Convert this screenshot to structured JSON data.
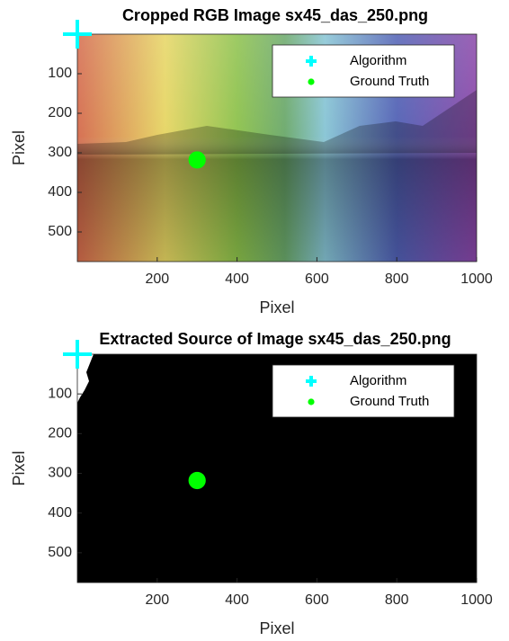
{
  "chart_data": [
    {
      "type": "scatter",
      "title": "Cropped RGB Image sx45_das_250.png",
      "x_label": "Pixel",
      "y_label": "Pixel",
      "xlim": [
        0,
        1000
      ],
      "xticks": [
        200,
        400,
        600,
        800,
        1000
      ],
      "ylim": [
        0,
        575
      ],
      "yticks": [
        100,
        200,
        300,
        400,
        500
      ],
      "y_reversed": true,
      "legend": "upper right",
      "series": [
        {
          "name": "Algorithm",
          "color": "#00ffff",
          "marker": "plus",
          "x": [
            0
          ],
          "values": [
            0
          ]
        },
        {
          "name": "Ground Truth",
          "color": "#00ff00",
          "marker": "circle",
          "x": [
            300
          ],
          "values": [
            318
          ]
        }
      ]
    },
    {
      "type": "scatter",
      "title": "Extracted Source of Image sx45_das_250.png",
      "x_label": "Pixel",
      "y_label": "Pixel",
      "xlim": [
        0,
        1000
      ],
      "xticks": [
        200,
        400,
        600,
        800,
        1000
      ],
      "ylim": [
        0,
        575
      ],
      "yticks": [
        100,
        200,
        300,
        400,
        500
      ],
      "y_reversed": true,
      "legend": "upper right",
      "series": [
        {
          "name": "Algorithm",
          "color": "#00ffff",
          "marker": "plus",
          "x": [
            0
          ],
          "values": [
            0
          ]
        },
        {
          "name": "Ground Truth",
          "color": "#00ff00",
          "marker": "circle",
          "x": [
            300
          ],
          "values": [
            318
          ]
        }
      ]
    }
  ]
}
